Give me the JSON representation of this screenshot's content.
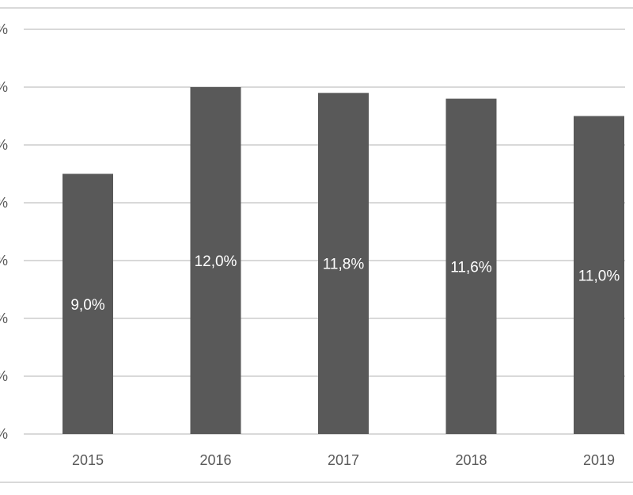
{
  "chart_data": {
    "type": "bar",
    "categories": [
      "2015",
      "2016",
      "2017",
      "2018",
      "2019"
    ],
    "values": [
      9.0,
      12.0,
      11.8,
      11.6,
      11.0
    ],
    "data_labels": [
      "9,0%",
      "12,0%",
      "11,8%",
      "11,6%",
      "11,0%"
    ],
    "y_tick_labels": [
      "%",
      "%",
      "%",
      "%",
      "%",
      "%",
      "%",
      "%"
    ],
    "ylim": [
      0,
      14
    ],
    "y_ticks": [
      0,
      2,
      4,
      6,
      8,
      10,
      12,
      14
    ],
    "grid": true,
    "legend": "none",
    "bar_color": "#595959",
    "grid_color": "#d9d9d9",
    "tick_label_color": "#595959",
    "data_label_color": "#ffffff"
  }
}
